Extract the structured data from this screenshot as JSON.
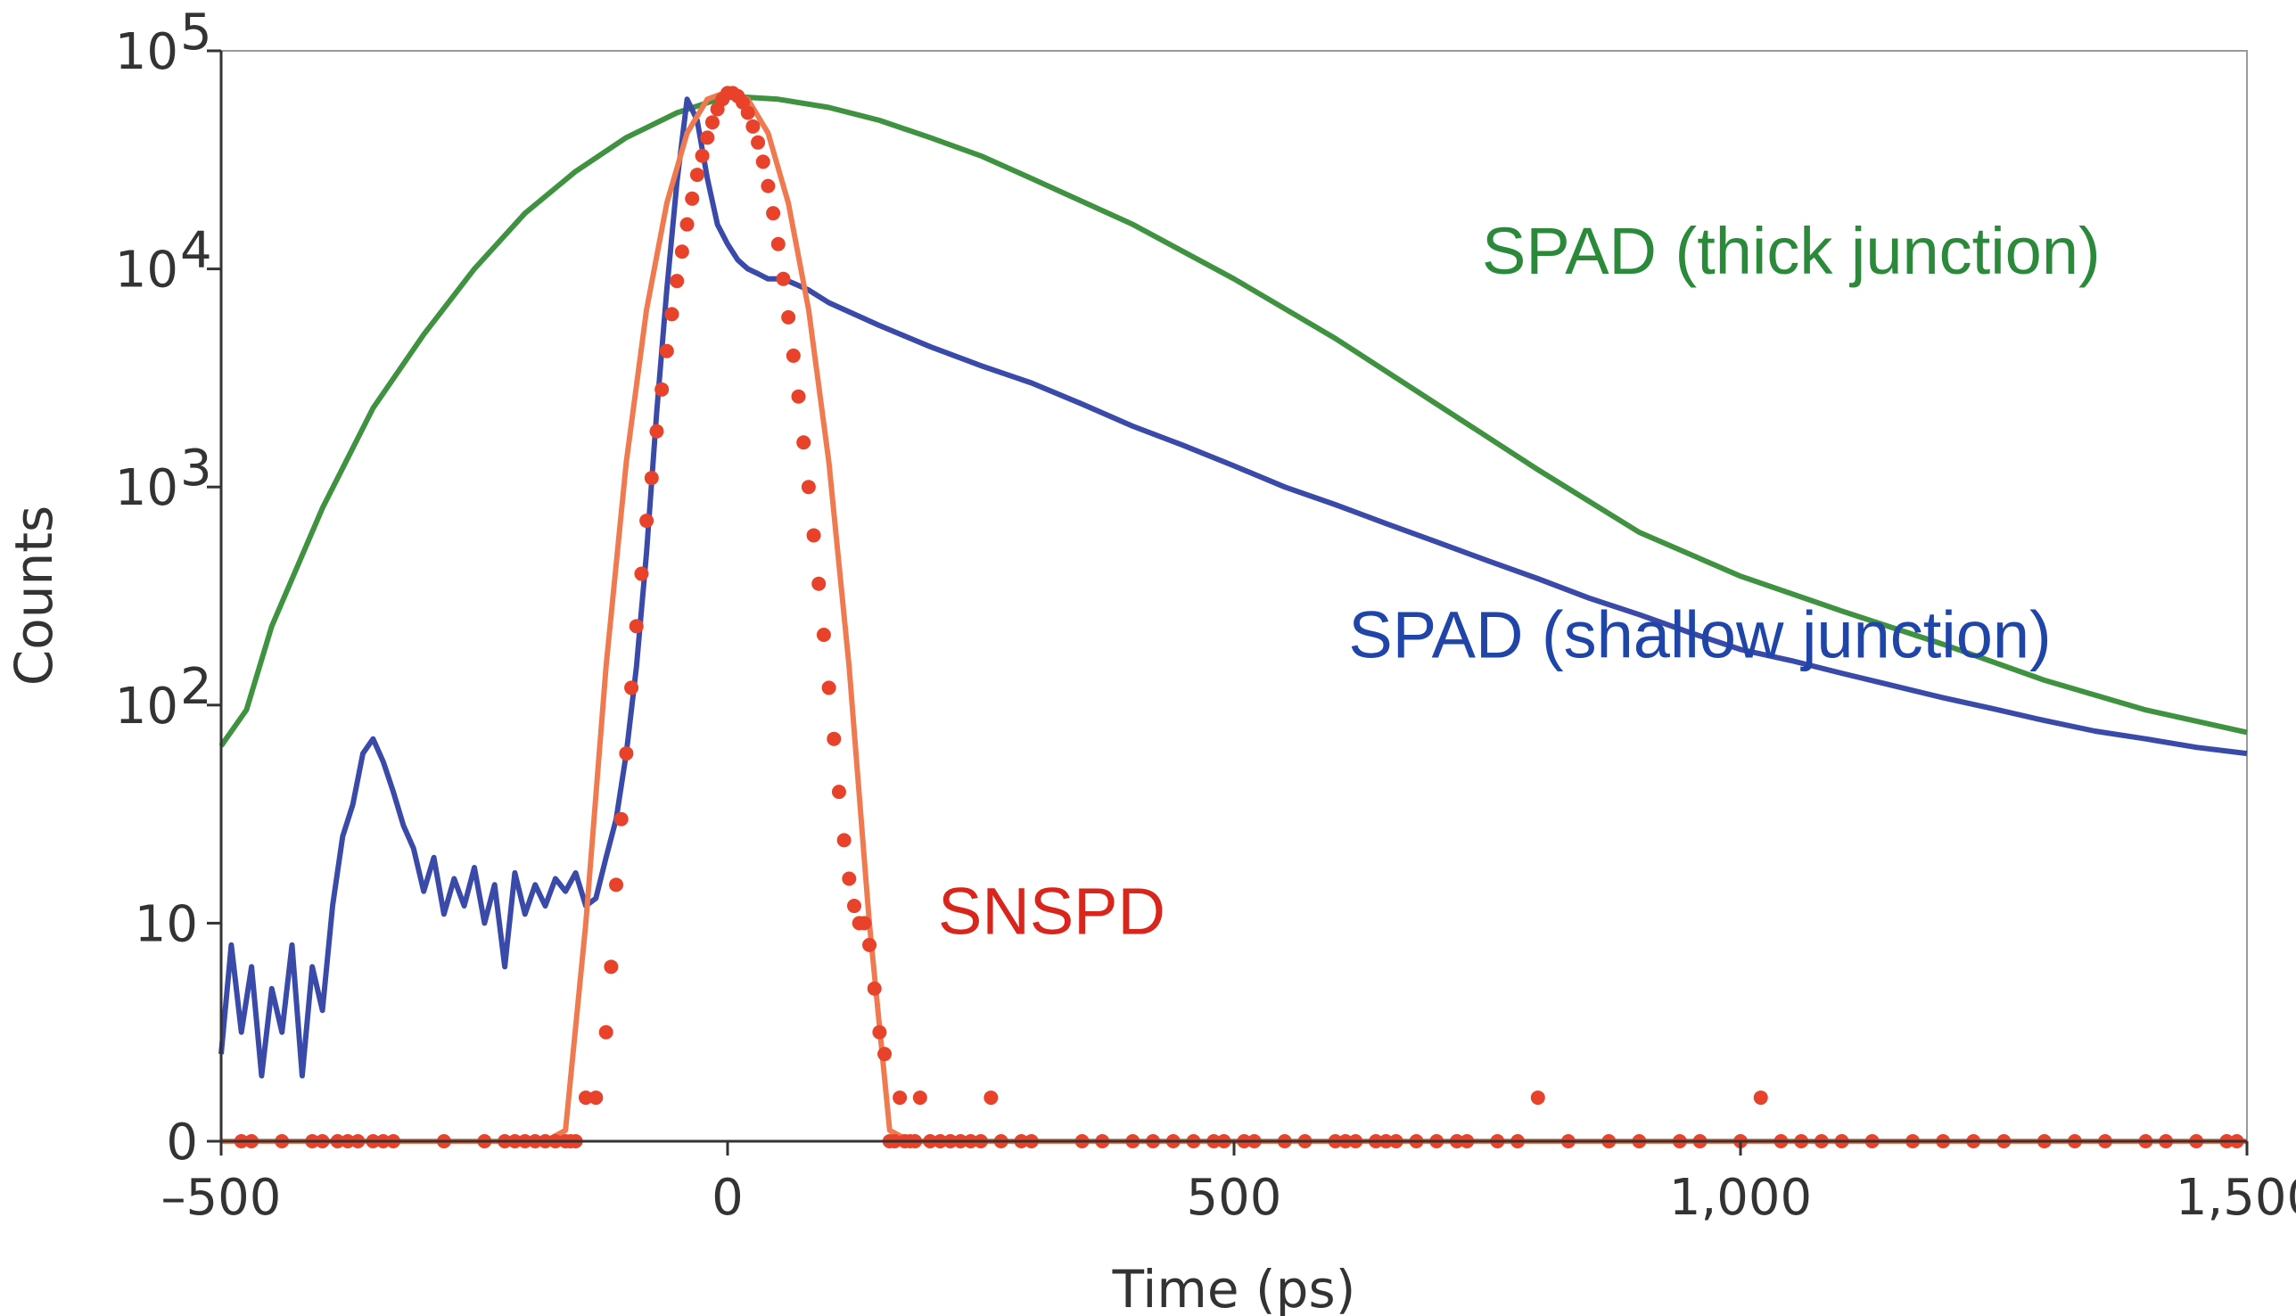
{
  "chart_data": {
    "type": "line",
    "xlabel": "Time (ps)",
    "ylabel": "Counts",
    "xlim": [
      -500,
      1500
    ],
    "ylim": [
      0,
      100000
    ],
    "yscale": "symlog",
    "grid": false,
    "x_ticks": [
      {
        "value": -500,
        "label": "–500"
      },
      {
        "value": 0,
        "label": "0"
      },
      {
        "value": 500,
        "label": "500"
      },
      {
        "value": 1000,
        "label": "1,000"
      },
      {
        "value": 1500,
        "label": "1,500"
      }
    ],
    "y_ticks": [
      {
        "value": 0,
        "label": "0",
        "sup": ""
      },
      {
        "value": 10,
        "label": "10",
        "sup": ""
      },
      {
        "value": 100,
        "label": "10",
        "sup": "2"
      },
      {
        "value": 1000,
        "label": "10",
        "sup": "3"
      },
      {
        "value": 10000,
        "label": "10",
        "sup": "4"
      },
      {
        "value": 100000,
        "label": "10",
        "sup": "5"
      }
    ],
    "annotations": [
      {
        "key": "thick",
        "text": "SPAD (thick junction)",
        "x": 1050,
        "y": 9500,
        "color": "#2a8a3a"
      },
      {
        "key": "shallow",
        "text": "SPAD (shallow junction)",
        "x": 960,
        "y": 165,
        "color": "#1f45a8"
      },
      {
        "key": "snspd",
        "text": "SNSPD",
        "x": 320,
        "y": 9.5,
        "color": "#d9261c"
      }
    ],
    "series": [
      {
        "name": "SPAD (thick junction)",
        "style": "line",
        "color": "#3f9240",
        "x": [
          -500,
          -475,
          -450,
          -400,
          -350,
          -300,
          -250,
          -200,
          -150,
          -100,
          -50,
          0,
          50,
          100,
          150,
          200,
          250,
          300,
          400,
          500,
          600,
          700,
          800,
          900,
          1000,
          1100,
          1200,
          1300,
          1400,
          1500
        ],
        "y": [
          65,
          95,
          230,
          800,
          2300,
          5000,
          10000,
          18000,
          28000,
          40000,
          52000,
          62000,
          60000,
          55000,
          48000,
          40000,
          33000,
          26000,
          16000,
          9000,
          4800,
          2400,
          1200,
          620,
          390,
          270,
          190,
          130,
          95,
          75
        ]
      },
      {
        "name": "SPAD (shallow junction)",
        "style": "line",
        "color": "#3a4aa8",
        "x": [
          -500,
          -490,
          -480,
          -470,
          -460,
          -450,
          -440,
          -430,
          -420,
          -410,
          -400,
          -390,
          -380,
          -370,
          -360,
          -350,
          -340,
          -330,
          -320,
          -310,
          -300,
          -290,
          -280,
          -270,
          -260,
          -250,
          -240,
          -230,
          -220,
          -210,
          -200,
          -190,
          -180,
          -170,
          -160,
          -150,
          -140,
          -130,
          -120,
          -110,
          -100,
          -90,
          -80,
          -70,
          -60,
          -50,
          -40,
          -30,
          -20,
          -10,
          0,
          10,
          20,
          30,
          40,
          50,
          60,
          80,
          100,
          150,
          200,
          250,
          300,
          350,
          400,
          450,
          500,
          550,
          600,
          650,
          700,
          750,
          800,
          850,
          900,
          950,
          1000,
          1050,
          1100,
          1150,
          1200,
          1250,
          1300,
          1350,
          1400,
          1450,
          1500
        ],
        "y": [
          4,
          9,
          5,
          8,
          3,
          7,
          5,
          9,
          3,
          8,
          6,
          12,
          25,
          35,
          60,
          70,
          55,
          40,
          28,
          22,
          14,
          20,
          11,
          16,
          12,
          18,
          10,
          15,
          8,
          17,
          11,
          15,
          12,
          16,
          14,
          17,
          12,
          13,
          20,
          30,
          60,
          150,
          500,
          2200,
          8000,
          25000,
          60000,
          48000,
          26000,
          16000,
          13000,
          11000,
          10000,
          9500,
          9000,
          9000,
          8800,
          8000,
          7000,
          5500,
          4400,
          3600,
          3000,
          2400,
          1900,
          1550,
          1250,
          1000,
          830,
          680,
          560,
          460,
          380,
          310,
          260,
          215,
          180,
          160,
          140,
          123,
          108,
          96,
          85,
          76,
          70,
          64,
          60
        ]
      },
      {
        "name": "SNSPD fit",
        "style": "line",
        "color": "#ef7a50",
        "x": [
          -500,
          -180,
          -160,
          -140,
          -120,
          -100,
          -80,
          -60,
          -40,
          -20,
          0,
          20,
          40,
          60,
          80,
          100,
          120,
          140,
          160,
          180,
          200,
          1500
        ],
        "y": [
          0,
          0,
          0.5,
          10,
          150,
          1300,
          6500,
          20000,
          42000,
          60000,
          65000,
          60000,
          42000,
          20000,
          6500,
          1300,
          150,
          10,
          0.5,
          0,
          0,
          0
        ]
      },
      {
        "name": "SNSPD data",
        "style": "dots",
        "color": "#e8432a",
        "x": [
          -480,
          -470,
          -440,
          -410,
          -400,
          -385,
          -375,
          -365,
          -350,
          -340,
          -330,
          -280,
          -240,
          -220,
          -210,
          -200,
          -190,
          -180,
          -170,
          -160,
          -155,
          -150,
          -140,
          -130,
          -120,
          -115,
          -110,
          -105,
          -100,
          -95,
          -90,
          -85,
          -80,
          -75,
          -70,
          -65,
          -60,
          -55,
          -50,
          -45,
          -40,
          -35,
          -30,
          -25,
          -20,
          -15,
          -10,
          -5,
          0,
          5,
          10,
          15,
          20,
          25,
          30,
          35,
          40,
          45,
          50,
          55,
          60,
          65,
          70,
          75,
          80,
          85,
          90,
          95,
          100,
          105,
          110,
          115,
          120,
          125,
          130,
          135,
          140,
          145,
          150,
          155,
          160,
          165,
          170,
          175,
          180,
          185,
          190,
          200,
          210,
          220,
          230,
          240,
          250,
          260,
          270,
          290,
          300,
          350,
          370,
          400,
          420,
          440,
          460,
          480,
          490,
          510,
          520,
          550,
          570,
          600,
          610,
          620,
          640,
          650,
          660,
          680,
          700,
          720,
          730,
          760,
          780,
          800,
          830,
          870,
          900,
          940,
          960,
          1000,
          1020,
          1040,
          1060,
          1080,
          1100,
          1130,
          1170,
          1200,
          1230,
          1260,
          1300,
          1330,
          1360,
          1400,
          1420,
          1450,
          1480,
          1490
        ],
        "y": [
          0,
          0,
          0,
          0,
          0,
          0,
          0,
          0,
          0,
          0,
          0,
          0,
          0,
          0,
          0,
          0,
          0,
          0,
          0,
          0,
          0,
          0,
          2,
          2,
          5,
          8,
          15,
          30,
          60,
          120,
          230,
          400,
          700,
          1100,
          1800,
          2800,
          4200,
          6200,
          8800,
          12000,
          16000,
          21000,
          27000,
          33000,
          40000,
          47000,
          54000,
          60000,
          64000,
          64000,
          62000,
          58000,
          52000,
          45000,
          38000,
          31000,
          24000,
          18000,
          13000,
          9000,
          6000,
          4000,
          2600,
          1600,
          1000,
          600,
          360,
          210,
          120,
          70,
          40,
          24,
          16,
          12,
          10,
          10,
          9,
          7,
          5,
          4,
          0,
          0,
          2,
          0,
          0,
          0,
          2,
          0,
          0,
          0,
          0,
          0,
          0,
          2,
          0,
          0,
          0,
          0,
          0,
          0,
          0,
          0,
          0,
          0,
          0,
          0,
          0,
          0,
          0,
          0,
          0,
          0,
          0,
          0,
          0,
          0,
          0,
          0,
          0,
          0,
          0,
          2,
          0,
          0,
          0,
          0,
          0,
          0,
          2,
          0,
          0,
          0,
          0,
          0,
          0,
          0,
          0,
          0,
          0,
          0,
          0,
          0,
          0,
          0,
          0,
          0
        ]
      }
    ]
  }
}
